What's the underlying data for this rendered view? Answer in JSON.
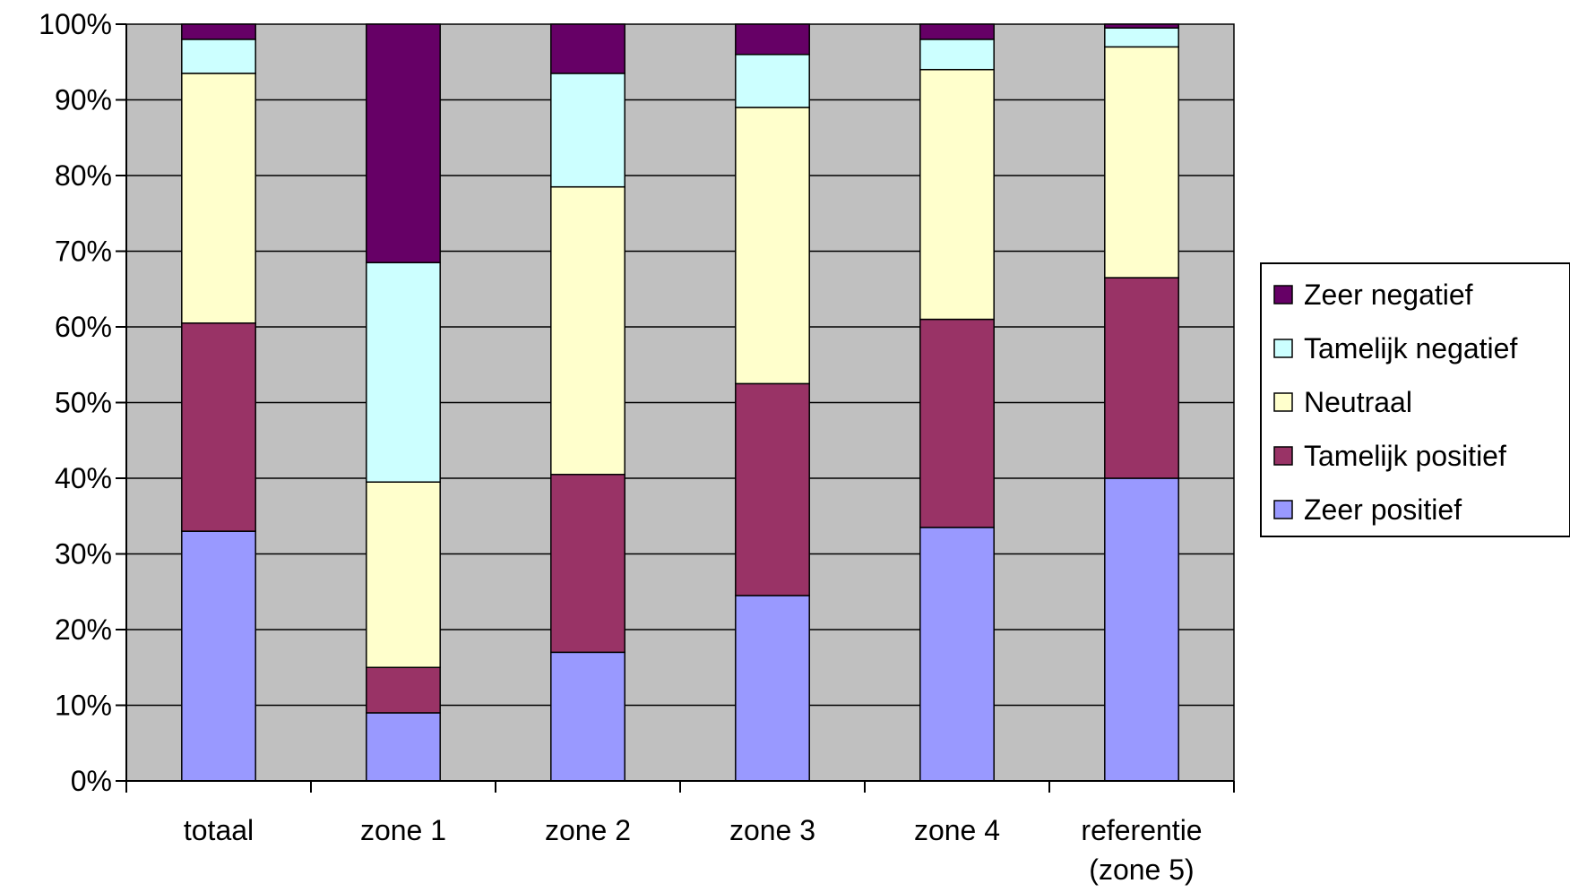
{
  "chart_data": {
    "type": "bar",
    "stacked": true,
    "percent": true,
    "title": "",
    "xlabel": "",
    "ylabel": "",
    "ylim": [
      0,
      100
    ],
    "y_ticks": [
      "0%",
      "10%",
      "20%",
      "30%",
      "40%",
      "50%",
      "60%",
      "70%",
      "80%",
      "90%",
      "100%"
    ],
    "grid": true,
    "legend_position": "right",
    "categories": [
      [
        "totaal"
      ],
      [
        "zone 1"
      ],
      [
        "zone 2"
      ],
      [
        "zone 3"
      ],
      [
        "zone 4"
      ],
      [
        "referentie",
        "(zone 5)"
      ]
    ],
    "series": [
      {
        "name": "Zeer positief",
        "color": "#9999ff",
        "values": [
          33,
          9,
          17,
          24.5,
          33.5,
          40
        ]
      },
      {
        "name": "Tamelijk positief",
        "color": "#993366",
        "values": [
          27.5,
          6,
          23.5,
          28,
          27.5,
          26.5
        ]
      },
      {
        "name": "Neutraal",
        "color": "#ffffcc",
        "values": [
          33,
          24.5,
          38,
          36.5,
          33,
          30.5
        ]
      },
      {
        "name": "Tamelijk negatief",
        "color": "#ccffff",
        "values": [
          4.5,
          29,
          15,
          7,
          4,
          2.5
        ]
      },
      {
        "name": "Zeer negatief",
        "color": "#660066",
        "values": [
          2,
          31.5,
          6.5,
          4,
          2,
          0.5
        ]
      }
    ],
    "plot_background": "#c0c0c0"
  }
}
